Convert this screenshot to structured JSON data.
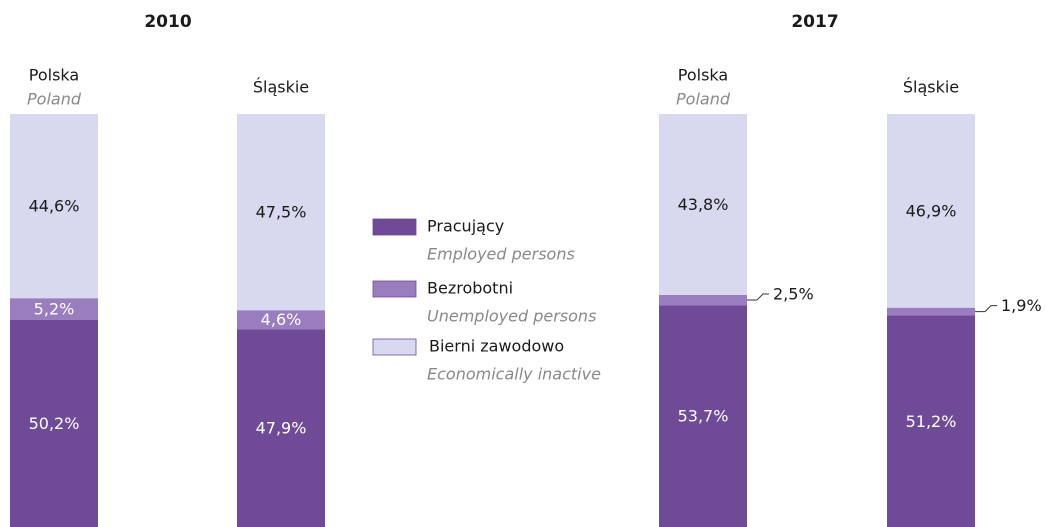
{
  "chart_data": {
    "type": "stacked_bar",
    "groups": [
      {
        "title": "2010",
        "categories": [
          "Polska",
          "Śląskie"
        ],
        "category_subtitles": [
          "Poland",
          null
        ]
      },
      {
        "title": "2017",
        "categories": [
          "Polska",
          "Śląskie"
        ],
        "category_subtitles": [
          "Poland",
          null
        ]
      }
    ],
    "series": [
      {
        "name": "Pracujący",
        "subtitle": "Employed persons",
        "color": "#6f4a96",
        "values": [
          50.2,
          47.9,
          53.7,
          51.2
        ],
        "value_labels": [
          "50,2%",
          "47,9%",
          "53,7%",
          "51,2%"
        ]
      },
      {
        "name": "Bezrobotni",
        "subtitle": "Unemployed persons",
        "color": "#9a7dbf",
        "values": [
          5.2,
          4.6,
          2.5,
          1.9
        ],
        "value_labels": [
          "5,2%",
          "4,6%",
          "2,5%",
          "1,9%"
        ]
      },
      {
        "name": "Bierni zawodowo",
        "subtitle": "Economically inactive",
        "color": "#d8d8ee",
        "values": [
          44.6,
          47.5,
          43.8,
          46.9
        ],
        "value_labels": [
          "44,6%",
          "47,5%",
          "43,8%",
          "46,9%"
        ]
      }
    ],
    "ylim": [
      0,
      100
    ]
  }
}
